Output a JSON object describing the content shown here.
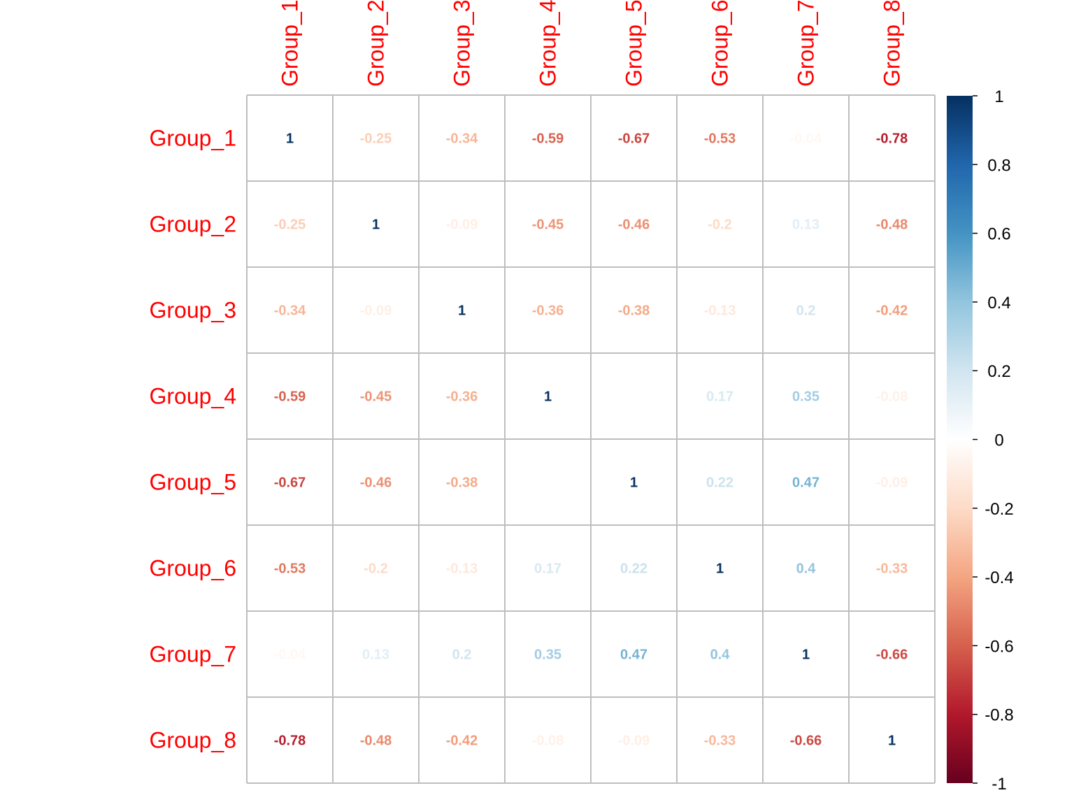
{
  "chart_data": {
    "type": "heatmap",
    "row_labels": [
      "Group_1",
      "Group_2",
      "Group_3",
      "Group_4",
      "Group_5",
      "Group_6",
      "Group_7",
      "Group_8"
    ],
    "col_labels": [
      "Group_1",
      "Group_2",
      "Group_3",
      "Group_4",
      "Group_5",
      "Group_6",
      "Group_7",
      "Group_8"
    ],
    "cell_labels": [
      [
        "1",
        "-0.25",
        "-0.34",
        "-0.59",
        "-0.67",
        "-0.53",
        "-0.04",
        "-0.78"
      ],
      [
        "-0.25",
        "1",
        "-0.09",
        "-0.45",
        "-0.46",
        "-0.2",
        "0.13",
        "-0.48"
      ],
      [
        "-0.34",
        "-0.09",
        "1",
        "-0.36",
        "-0.38",
        "-0.13",
        "0.2",
        "-0.42"
      ],
      [
        "-0.59",
        "-0.45",
        "-0.36",
        "1",
        "0",
        "0.17",
        "0.35",
        "-0.08"
      ],
      [
        "-0.67",
        "-0.46",
        "-0.38",
        "0",
        "1",
        "0.22",
        "0.47",
        "-0.09"
      ],
      [
        "-0.53",
        "-0.2",
        "-0.13",
        "0.17",
        "0.22",
        "1",
        "0.4",
        "-0.33"
      ],
      [
        "-0.04",
        "0.13",
        "0.2",
        "0.35",
        "0.47",
        "0.4",
        "1",
        "-0.66"
      ],
      [
        "-0.78",
        "-0.48",
        "-0.42",
        "-0.08",
        "-0.09",
        "-0.33",
        "-0.66",
        "1"
      ]
    ],
    "values": [
      [
        1,
        -0.25,
        -0.34,
        -0.59,
        -0.67,
        -0.53,
        -0.04,
        -0.78
      ],
      [
        -0.25,
        1,
        -0.09,
        -0.45,
        -0.46,
        -0.2,
        0.13,
        -0.48
      ],
      [
        -0.34,
        -0.09,
        1,
        -0.36,
        -0.38,
        -0.13,
        0.2,
        -0.42
      ],
      [
        -0.59,
        -0.45,
        -0.36,
        1,
        0,
        0.17,
        0.35,
        -0.08
      ],
      [
        -0.67,
        -0.46,
        -0.38,
        0,
        1,
        0.22,
        0.47,
        -0.09
      ],
      [
        -0.53,
        -0.2,
        -0.13,
        0.17,
        0.22,
        1,
        0.4,
        -0.33
      ],
      [
        -0.04,
        0.13,
        0.2,
        0.35,
        0.47,
        0.4,
        1,
        -0.66
      ],
      [
        -0.78,
        -0.48,
        -0.42,
        -0.08,
        -0.09,
        -0.33,
        -0.66,
        1
      ]
    ],
    "colorbar": {
      "range": [
        -1,
        1
      ],
      "ticks": [
        "1",
        "0.8",
        "0.6",
        "0.4",
        "0.2",
        "0",
        "-0.2",
        "-0.4",
        "-0.6",
        "-0.8",
        "-1"
      ],
      "tick_values": [
        1,
        0.8,
        0.6,
        0.4,
        0.2,
        0,
        -0.2,
        -0.4,
        -0.6,
        -0.8,
        -1
      ],
      "palette": [
        "#67001F",
        "#B2182B",
        "#D6604D",
        "#F4A582",
        "#FDDBC7",
        "#FFFFFF",
        "#D1E5F0",
        "#92C5DE",
        "#4393C3",
        "#2166AC",
        "#053061"
      ]
    },
    "label_color": "#FF0000",
    "grid_color": "#BEBEBE",
    "background": "#FFFFFF"
  }
}
